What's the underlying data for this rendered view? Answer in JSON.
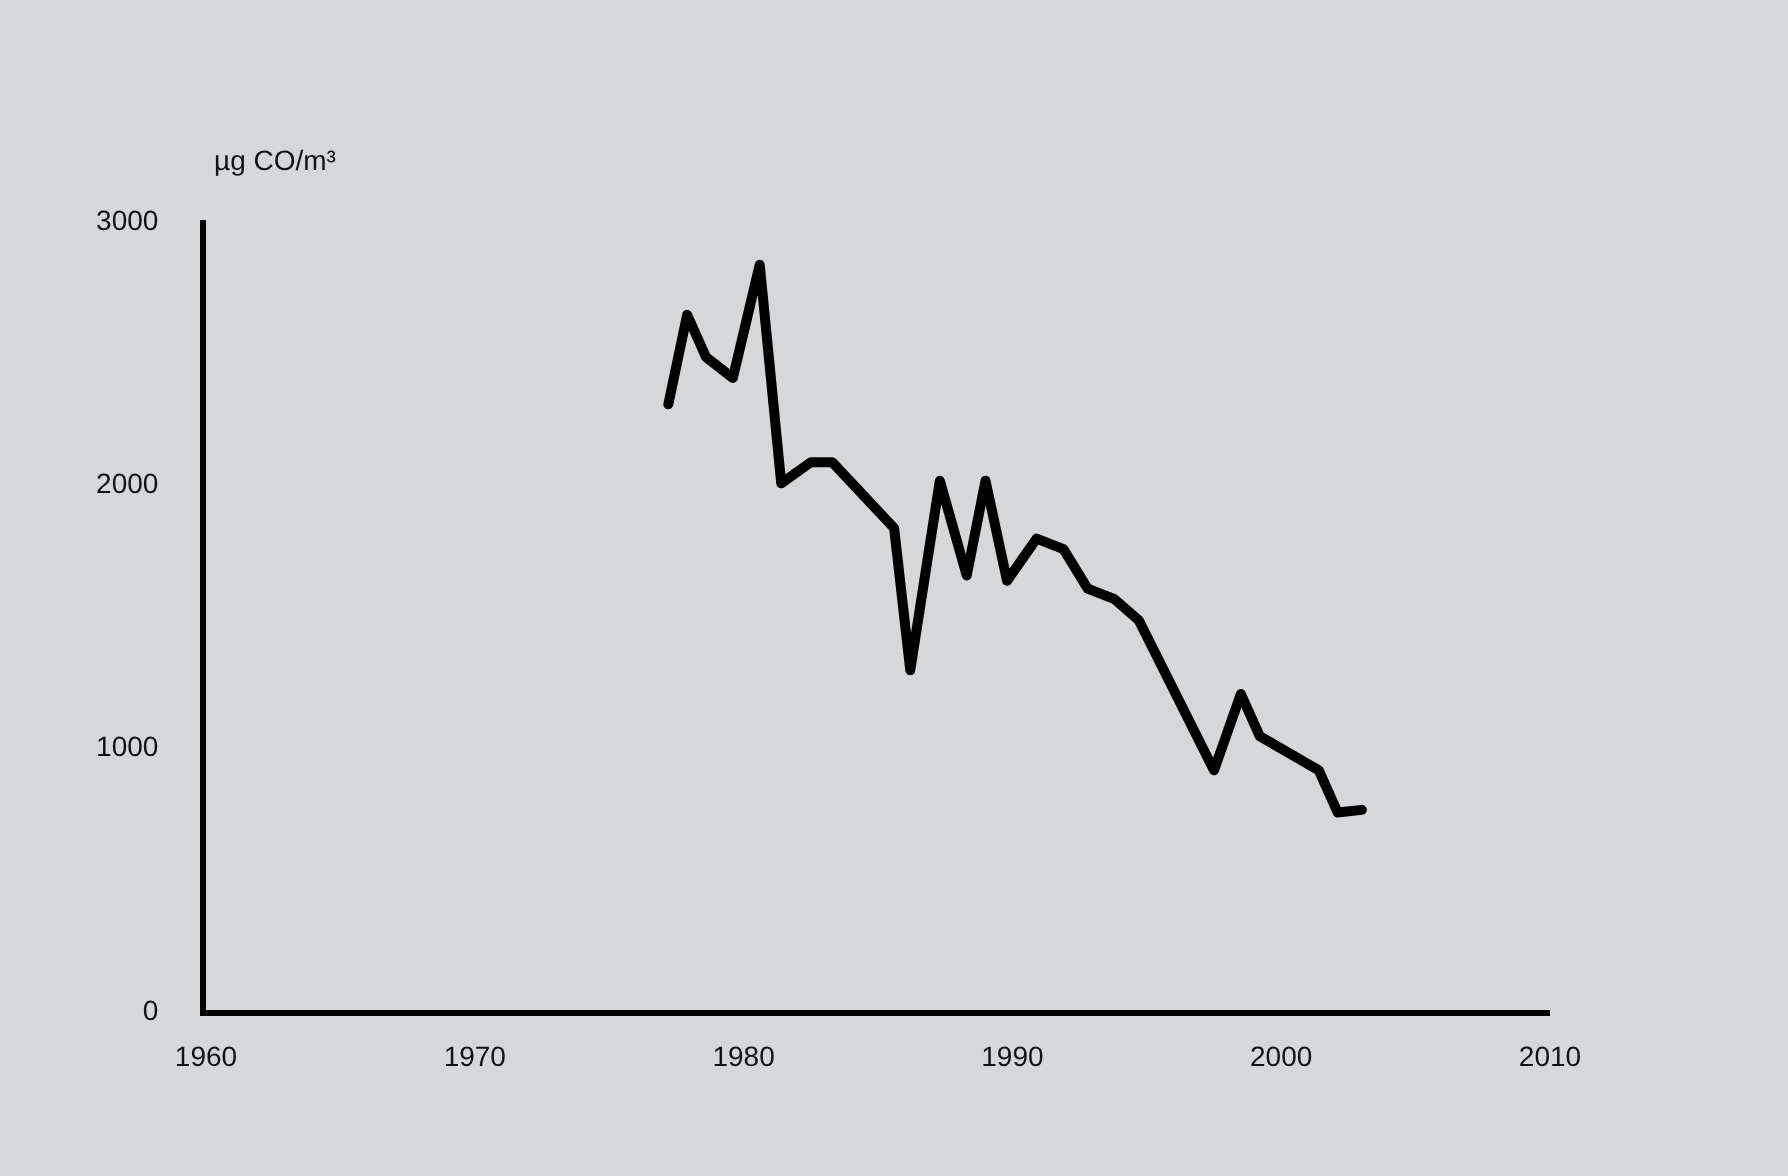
{
  "chart_data": {
    "type": "line",
    "ylabel": "µg CO/m³",
    "x": [
      1977.2,
      1977.9,
      1978.6,
      1979.6,
      1980.6,
      1981.4,
      1982.5,
      1983.3,
      1985.6,
      1986.2,
      1987.3,
      1988.3,
      1989.0,
      1989.8,
      1990.9,
      1991.9,
      1992.8,
      1993.8,
      1994.7,
      1997.5,
      1998.5,
      1999.2,
      2001.4,
      2002.1,
      2003.0
    ],
    "series": [
      {
        "color": "#000000",
        "values": [
          2300,
          2640,
          2480,
          2400,
          2830,
          2000,
          2080,
          2080,
          1830,
          1290,
          2010,
          1650,
          2010,
          1630,
          1790,
          1750,
          1600,
          1560,
          1480,
          910,
          1200,
          1040,
          910,
          750,
          760
        ]
      }
    ],
    "xlim": [
      1960,
      2010
    ],
    "xticks": [
      1960,
      1970,
      1980,
      1990,
      2000,
      2010
    ],
    "ylim": [
      0,
      3000
    ],
    "yticks": [
      0,
      1000,
      2000,
      3000
    ],
    "grid": false,
    "marker": "none",
    "line_style": "solid"
  }
}
